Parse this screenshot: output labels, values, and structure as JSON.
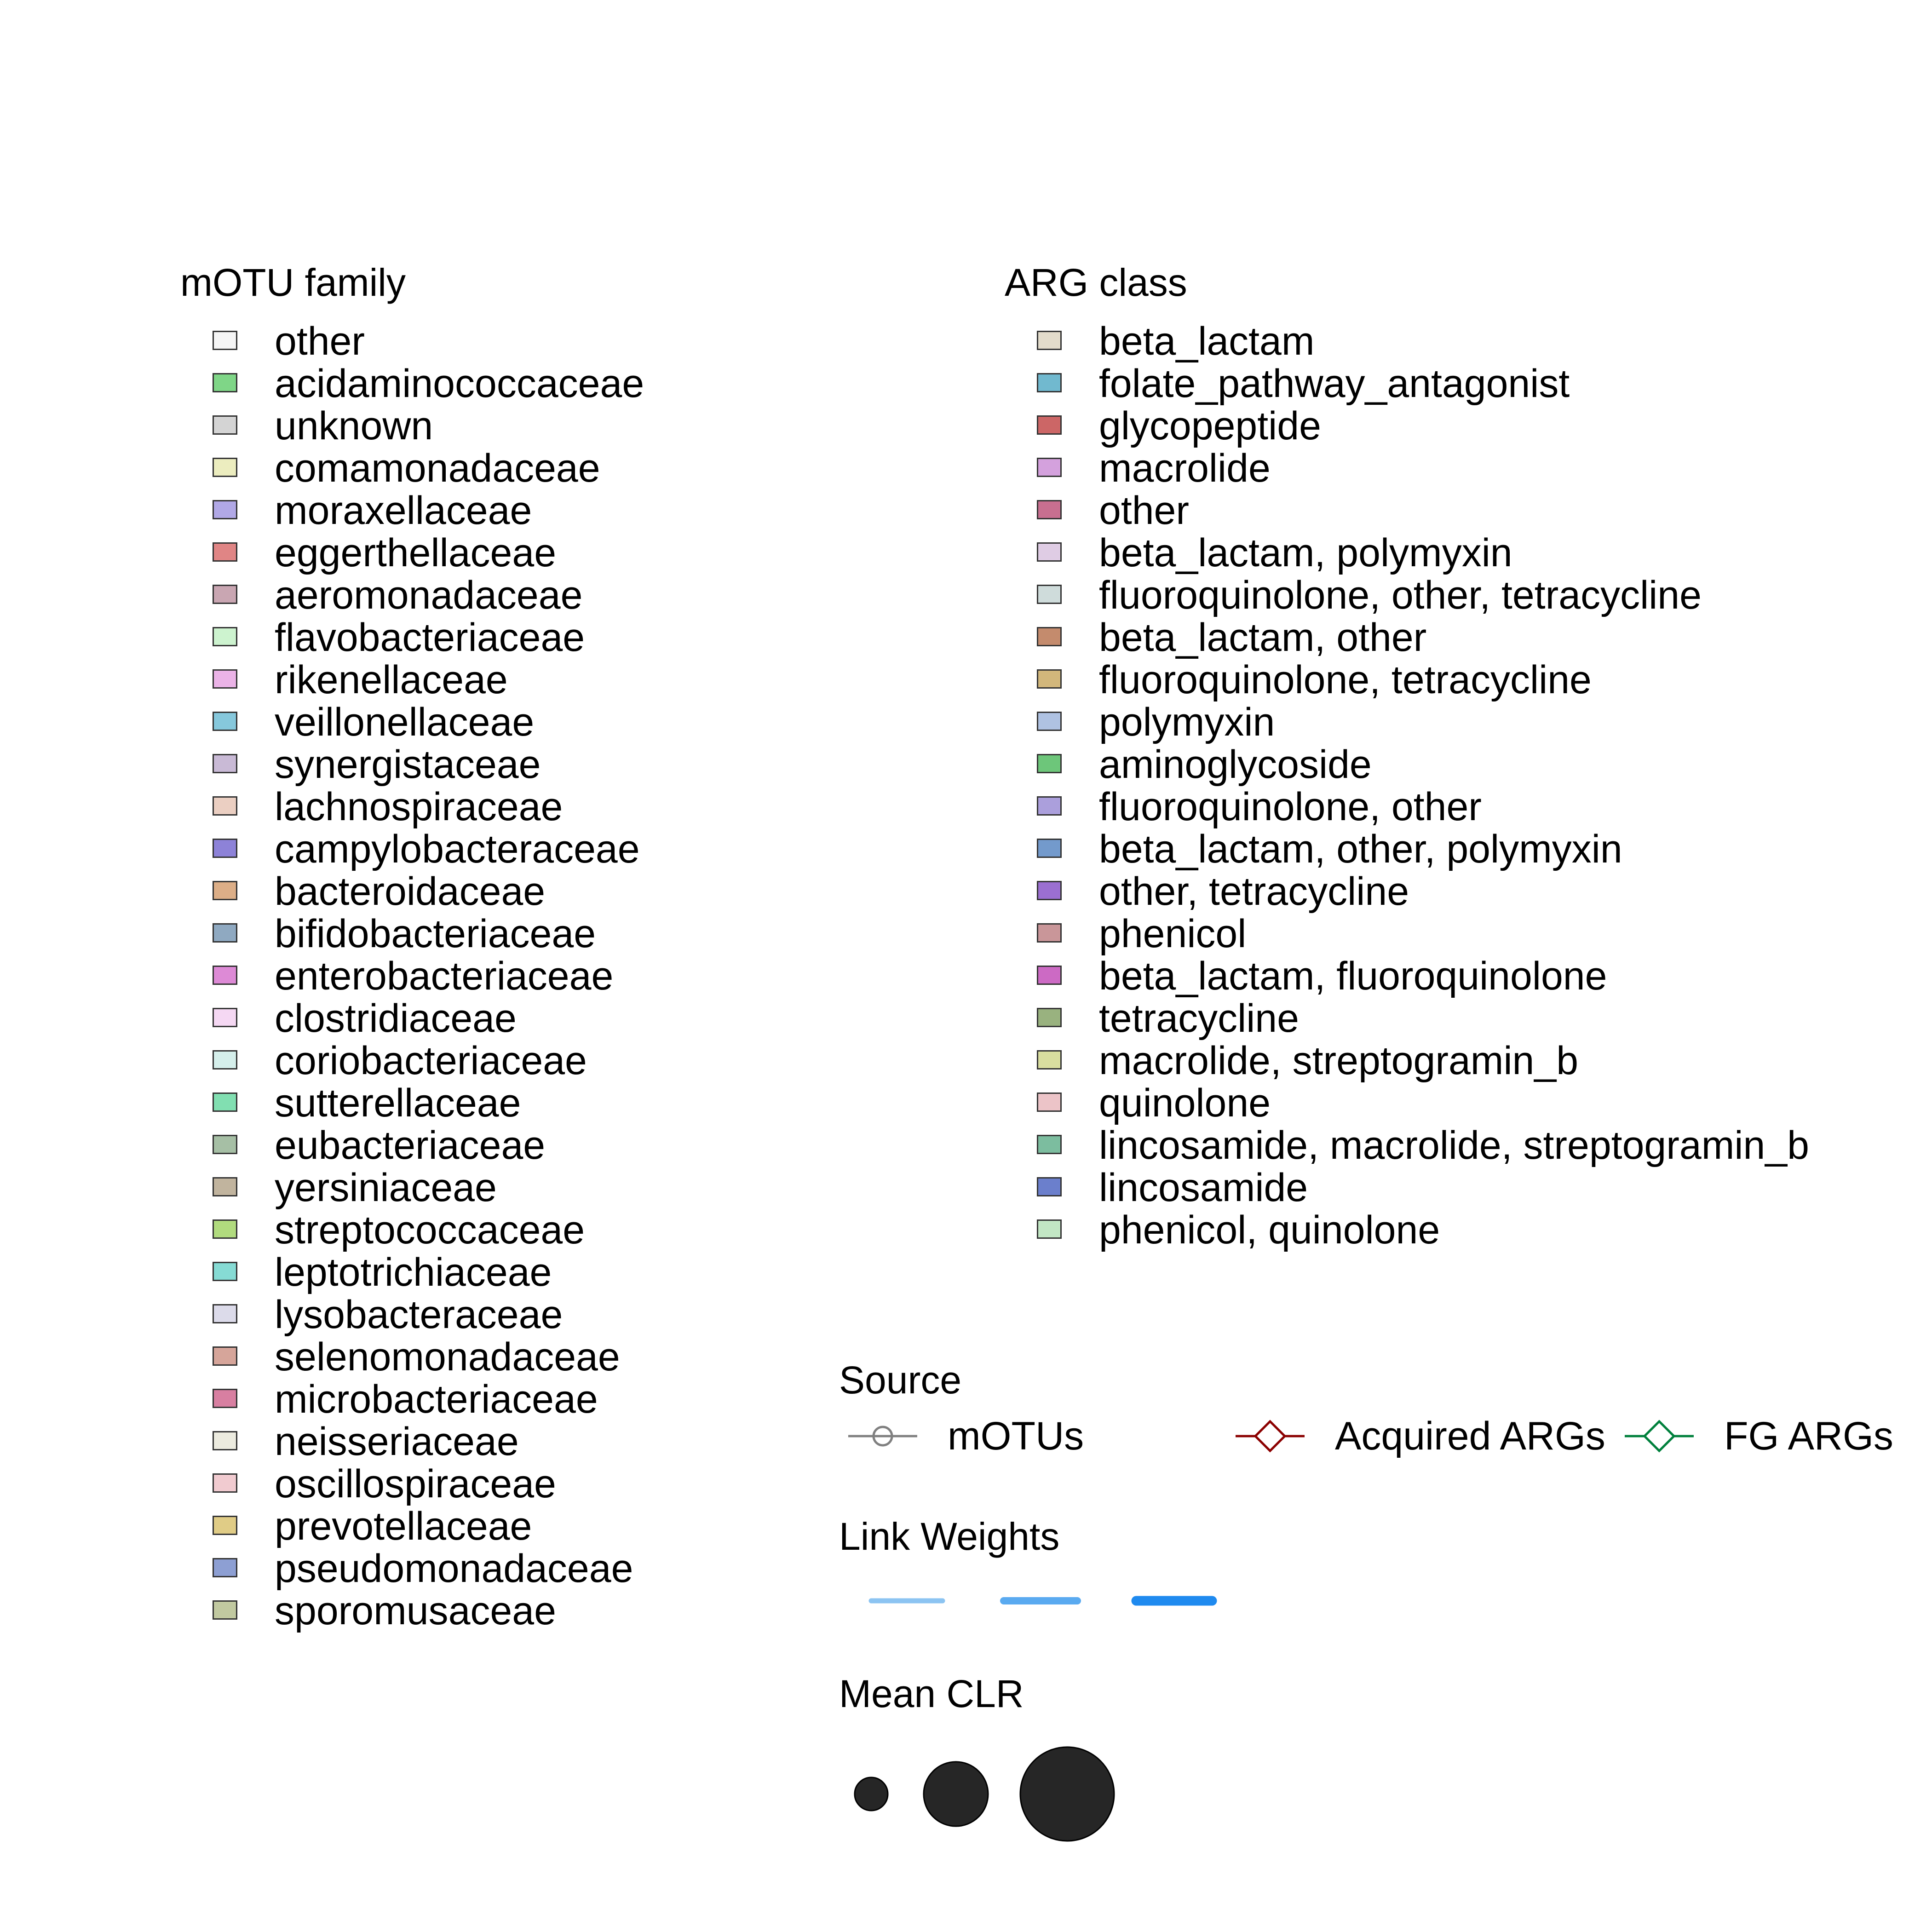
{
  "chart_data": {
    "type": "legend",
    "legends": {
      "motu_family": {
        "title": "mOTU family",
        "entries": [
          {
            "label": "other",
            "color": "#f5f5f5"
          },
          {
            "label": "acidaminococcaceae",
            "color": "#7fd687"
          },
          {
            "label": "unknown",
            "color": "#d4d4d4"
          },
          {
            "label": "comamonadaceae",
            "color": "#ecedbf"
          },
          {
            "label": "moraxellaceae",
            "color": "#b1a8e6"
          },
          {
            "label": "eggerthellaceae",
            "color": "#e08585"
          },
          {
            "label": "aeromonadaceae",
            "color": "#c9a6b2"
          },
          {
            "label": "flavobacteriaceae",
            "color": "#cdf3cf"
          },
          {
            "label": "rikenellaceae",
            "color": "#ebb3e7"
          },
          {
            "label": "veillonellaceae",
            "color": "#86c8dc"
          },
          {
            "label": "synergistaceae",
            "color": "#c9bad6"
          },
          {
            "label": "lachnospiraceae",
            "color": "#ebcfc2"
          },
          {
            "label": "campylobacteraceae",
            "color": "#8d82d8"
          },
          {
            "label": "bacteroidaceae",
            "color": "#dcae87"
          },
          {
            "label": "bifidobacteriaceae",
            "color": "#8fa9c1"
          },
          {
            "label": "enterobacteriaceae",
            "color": "#dd8ad6"
          },
          {
            "label": "clostridiaceae",
            "color": "#f5d8f3"
          },
          {
            "label": "coriobacteriaceae",
            "color": "#d5efeb"
          },
          {
            "label": "sutterellaceae",
            "color": "#81dfb1"
          },
          {
            "label": "eubacteriaceae",
            "color": "#a6bfa5"
          },
          {
            "label": "yersiniaceae",
            "color": "#c1b49e"
          },
          {
            "label": "streptococcaceae",
            "color": "#b1db7e"
          },
          {
            "label": "leptotrichiaceae",
            "color": "#86dbd4"
          },
          {
            "label": "lysobacteraceae",
            "color": "#dcdbea"
          },
          {
            "label": "selenomonadaceae",
            "color": "#d6a59a"
          },
          {
            "label": "microbacteriaceae",
            "color": "#d87fa1"
          },
          {
            "label": "neisseriaceae",
            "color": "#ecebdf"
          },
          {
            "label": "oscillospiraceae",
            "color": "#f1cbd0"
          },
          {
            "label": "prevotellaceae",
            "color": "#e0cc86"
          },
          {
            "label": "pseudomonadaceae",
            "color": "#8d9fd3"
          },
          {
            "label": "sporomusaceae",
            "color": "#c1c9a0"
          }
        ]
      },
      "arg_class": {
        "title": "ARG class",
        "entries": [
          {
            "label": "beta_lactam",
            "color": "#e3dccb"
          },
          {
            "label": "folate_pathway_antagonist",
            "color": "#71b9cf"
          },
          {
            "label": "glycopeptide",
            "color": "#cc6666"
          },
          {
            "label": "macrolide",
            "color": "#d4a1dd"
          },
          {
            "label": "other",
            "color": "#c86f90"
          },
          {
            "label": "beta_lactam, polymyxin",
            "color": "#dfcce4"
          },
          {
            "label": "fluoroquinolone, other, tetracycline",
            "color": "#cfdcdb"
          },
          {
            "label": "beta_lactam, other",
            "color": "#c48b6d"
          },
          {
            "label": "fluoroquinolone, tetracycline",
            "color": "#d2b77b"
          },
          {
            "label": "polymyxin",
            "color": "#afc2e2"
          },
          {
            "label": "aminoglycoside",
            "color": "#6dc67a"
          },
          {
            "label": "fluoroquinolone, other",
            "color": "#ab9fdc"
          },
          {
            "label": "beta_lactam, other, polymyxin",
            "color": "#739acc"
          },
          {
            "label": "other, tetracycline",
            "color": "#9b6fd1"
          },
          {
            "label": "phenicol",
            "color": "#c99699"
          },
          {
            "label": "beta_lactam, fluoroquinolone",
            "color": "#cc6ac4"
          },
          {
            "label": "tetracycline",
            "color": "#99b27f"
          },
          {
            "label": "macrolide, streptogramin_b",
            "color": "#d9de9f"
          },
          {
            "label": "quinolone",
            "color": "#ecc4c8"
          },
          {
            "label": "lincosamide, macrolide, streptogramin_b",
            "color": "#7cbd9f"
          },
          {
            "label": "lincosamide",
            "color": "#6b7fcc"
          },
          {
            "label": "phenicol, quinolone",
            "color": "#c2e7c4"
          }
        ]
      },
      "source": {
        "title": "Source",
        "entries": [
          {
            "label": "mOTUs",
            "color": "#808080",
            "shape": "circle"
          },
          {
            "label": "Acquired ARGs",
            "color": "#8b0000",
            "shape": "diamond"
          },
          {
            "label": "FG ARGs",
            "color": "#00803c",
            "shape": "diamond"
          }
        ]
      },
      "link_weights": {
        "title": "Link Weights",
        "levels": [
          {
            "color": "#8cc4f2",
            "weight": 1
          },
          {
            "color": "#5aaaf0",
            "weight": 2
          },
          {
            "color": "#1f8aef",
            "weight": 3
          }
        ]
      },
      "mean_clr": {
        "title": "Mean CLR",
        "levels": [
          {
            "size": 1
          },
          {
            "size": 2
          },
          {
            "size": 3
          }
        ],
        "fill": "#262626"
      }
    }
  }
}
